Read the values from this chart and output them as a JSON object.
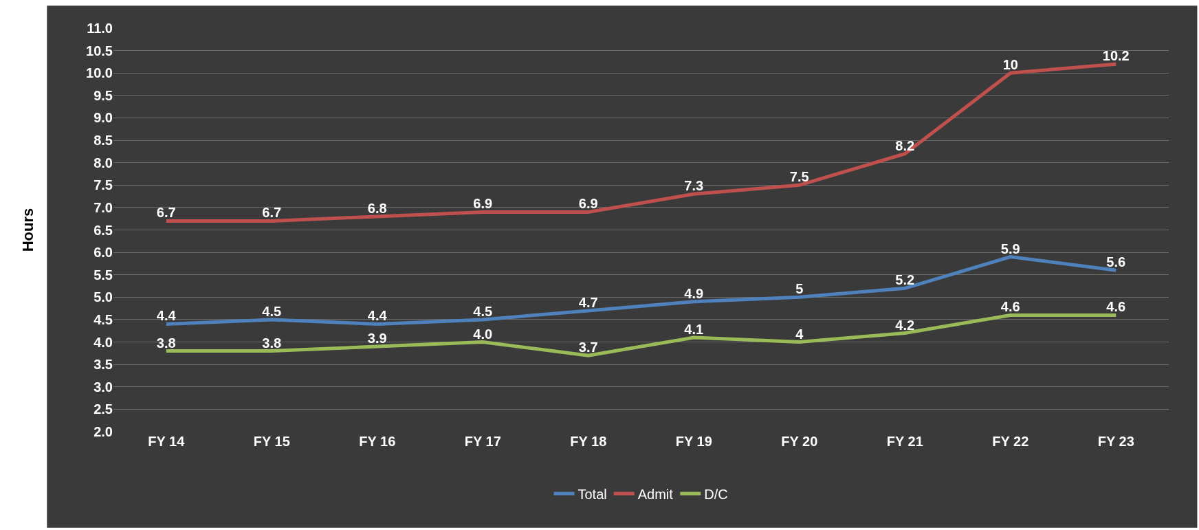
{
  "chart_data": {
    "type": "line",
    "ylabel": "Hours",
    "categories": [
      "FY 14",
      "FY 15",
      "FY 16",
      "FY 17",
      "FY 18",
      "FY 19",
      "FY 20",
      "FY 21",
      "FY 22",
      "FY 23"
    ],
    "series": [
      {
        "name": "Total",
        "color": "#4f81bd",
        "values": [
          4.4,
          4.5,
          4.4,
          4.5,
          4.7,
          4.9,
          5,
          5.2,
          5.9,
          5.6
        ],
        "value_labels": [
          "4.4",
          "4.5",
          "4.4",
          "4.5",
          "4.7",
          "4.9",
          "5",
          "5.2",
          "5.9",
          "5.6"
        ]
      },
      {
        "name": "Admit",
        "color": "#c0504d",
        "values": [
          6.7,
          6.7,
          6.8,
          6.9,
          6.9,
          7.3,
          7.5,
          8.2,
          10,
          10.2
        ],
        "value_labels": [
          "6.7",
          "6.7",
          "6.8",
          "6.9",
          "6.9",
          "7.3",
          "7.5",
          "8.2",
          "10",
          "10.2"
        ]
      },
      {
        "name": "D/C",
        "color": "#9bbb59",
        "values": [
          3.8,
          3.8,
          3.9,
          4.0,
          3.7,
          4.1,
          4,
          4.2,
          4.6,
          4.6
        ],
        "value_labels": [
          "3.8",
          "3.8",
          "3.9",
          "4.0",
          "3.7",
          "4.1",
          "4",
          "4.2",
          "4.6",
          "4.6"
        ]
      }
    ],
    "ylim": [
      2,
      11
    ],
    "yticks": [
      {
        "value": 2,
        "label": "2.0"
      },
      2.5,
      {
        "value": 3,
        "label": "3.0"
      },
      3.5,
      {
        "value": 4,
        "label": "4.0"
      },
      4.5,
      {
        "value": 5,
        "label": "5.0"
      },
      5.5,
      {
        "value": 6,
        "label": "6.0"
      },
      6.5,
      {
        "value": 7,
        "label": "7.0"
      },
      7.5,
      {
        "value": 8,
        "label": "8.0"
      },
      8.5,
      {
        "value": 9,
        "label": "9.0"
      },
      9.5,
      {
        "value": 10,
        "label": "10.0"
      },
      10.5,
      {
        "value": 11,
        "label": "11.0"
      }
    ],
    "grid": "y",
    "legend": "bottom",
    "marker": "none",
    "line_style": "solid"
  }
}
